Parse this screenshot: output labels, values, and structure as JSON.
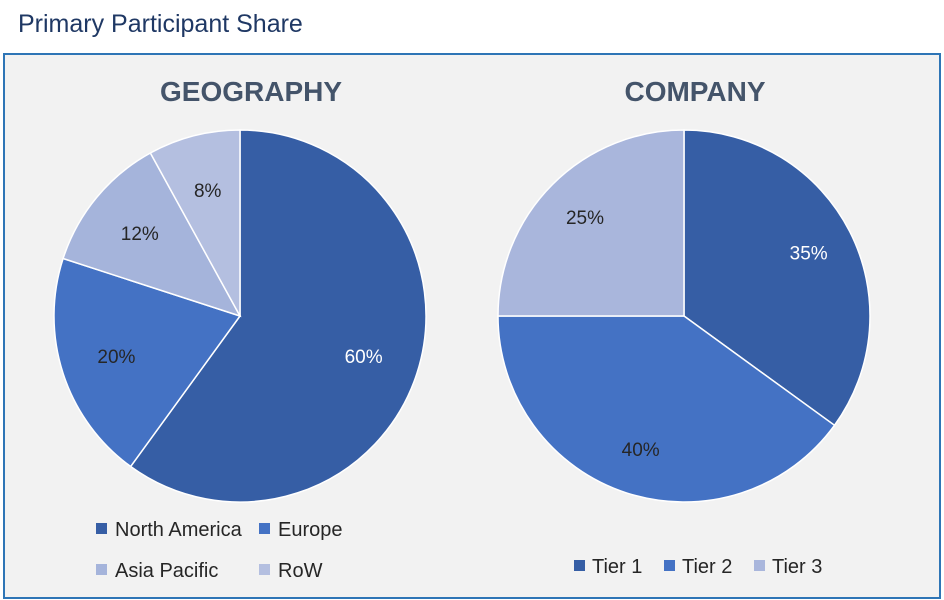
{
  "page": {
    "title": "Primary Participant Share"
  },
  "chart_data": [
    {
      "type": "pie",
      "title": "GEOGRAPHY",
      "categories": [
        "North America",
        "Europe",
        "Asia Pacific",
        "RoW"
      ],
      "values": [
        60,
        20,
        12,
        8
      ],
      "value_labels": [
        "60%",
        "20%",
        "12%",
        "8%"
      ],
      "colors": [
        "#365ea5",
        "#4472c4",
        "#a5b4db",
        "#b4bfe0"
      ],
      "label_colors": [
        "#ffffff",
        "#262626",
        "#262626",
        "#262626"
      ],
      "start_angle": "12 o'clock",
      "direction": "clockwise",
      "legend": "bottom"
    },
    {
      "type": "pie",
      "title": "COMPANY",
      "categories": [
        "Tier 1",
        "Tier 2",
        "Tier 3"
      ],
      "values": [
        35,
        40,
        25
      ],
      "value_labels": [
        "35%",
        "40%",
        "25%"
      ],
      "colors": [
        "#365ea5",
        "#4472c4",
        "#a9b6dc"
      ],
      "label_colors": [
        "#ffffff",
        "#262626",
        "#262626"
      ],
      "start_angle": "12 o'clock",
      "direction": "clockwise",
      "legend": "bottom"
    }
  ]
}
